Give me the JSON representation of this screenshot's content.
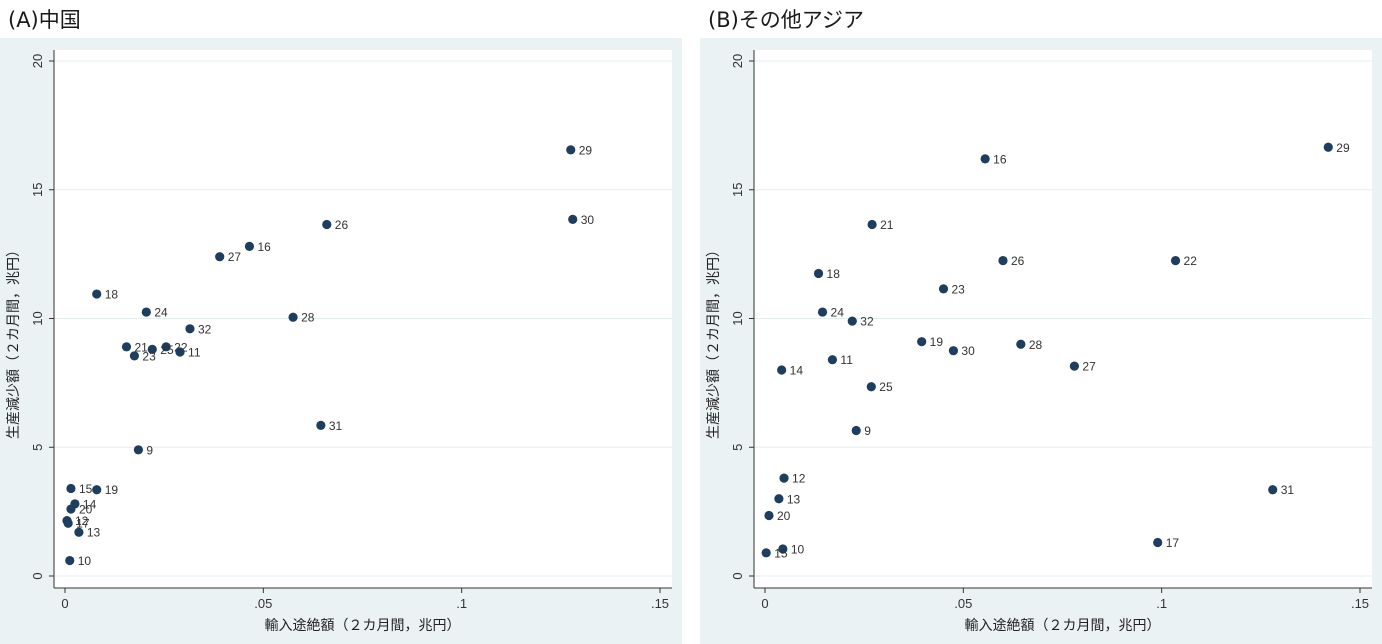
{
  "chart_data": [
    {
      "type": "scatter",
      "title": "(A)中国",
      "xlabel": "輸入途絶額（２カ月間，兆円）",
      "ylabel": "生産減少額（２カ月間，兆円）",
      "xlim": [
        0,
        0.15
      ],
      "ylim": [
        0,
        20
      ],
      "xticks": [
        0,
        0.05,
        0.1,
        0.15
      ],
      "xtick_labels": [
        "0",
        ".05",
        ".1",
        ".15"
      ],
      "yticks": [
        0,
        5,
        10,
        15,
        20
      ],
      "ytick_labels": [
        "0",
        "5",
        "10",
        "15",
        "20"
      ],
      "grid": true,
      "marker_color": "#1f3d5c",
      "points": [
        {
          "label": "29",
          "x": 0.1275,
          "y": 16.55
        },
        {
          "label": "30",
          "x": 0.128,
          "y": 13.85
        },
        {
          "label": "26",
          "x": 0.066,
          "y": 13.65
        },
        {
          "label": "16",
          "x": 0.0465,
          "y": 12.8
        },
        {
          "label": "27",
          "x": 0.039,
          "y": 12.4
        },
        {
          "label": "18",
          "x": 0.008,
          "y": 10.95
        },
        {
          "label": "24",
          "x": 0.0205,
          "y": 10.25
        },
        {
          "label": "28",
          "x": 0.0575,
          "y": 10.05
        },
        {
          "label": "32",
          "x": 0.0315,
          "y": 9.6
        },
        {
          "label": "21",
          "x": 0.0155,
          "y": 8.9
        },
        {
          "label": "22",
          "x": 0.0255,
          "y": 8.9
        },
        {
          "label": "25",
          "x": 0.022,
          "y": 8.8
        },
        {
          "label": "11",
          "x": 0.029,
          "y": 8.7
        },
        {
          "label": "23",
          "x": 0.0175,
          "y": 8.55
        },
        {
          "label": "31",
          "x": 0.0645,
          "y": 5.85
        },
        {
          "label": "9",
          "x": 0.0185,
          "y": 4.9
        },
        {
          "label": "15",
          "x": 0.0015,
          "y": 3.4
        },
        {
          "label": "19",
          "x": 0.008,
          "y": 3.35
        },
        {
          "label": "14",
          "x": 0.0025,
          "y": 2.8
        },
        {
          "label": "20",
          "x": 0.0015,
          "y": 2.6
        },
        {
          "label": "12",
          "x": 0.0005,
          "y": 2.15
        },
        {
          "label": "17",
          "x": 0.0008,
          "y": 2.05
        },
        {
          "label": "13",
          "x": 0.0035,
          "y": 1.7
        },
        {
          "label": "10",
          "x": 0.0012,
          "y": 0.6
        }
      ]
    },
    {
      "type": "scatter",
      "title": "(B)その他アジア",
      "xlabel": "輸入途絶額（２カ月間，兆円）",
      "ylabel": "生産減少額（２カ月間，兆円）",
      "xlim": [
        0,
        0.15
      ],
      "ylim": [
        0,
        20
      ],
      "xticks": [
        0,
        0.05,
        0.1,
        0.15
      ],
      "xtick_labels": [
        "0",
        ".05",
        ".1",
        ".15"
      ],
      "yticks": [
        0,
        5,
        10,
        15,
        20
      ],
      "ytick_labels": [
        "0",
        "5",
        "10",
        "15",
        "20"
      ],
      "grid": true,
      "marker_color": "#1f3d5c",
      "points": [
        {
          "label": "29",
          "x": 0.142,
          "y": 16.65
        },
        {
          "label": "16",
          "x": 0.0555,
          "y": 16.2
        },
        {
          "label": "21",
          "x": 0.027,
          "y": 13.65
        },
        {
          "label": "26",
          "x": 0.06,
          "y": 12.25
        },
        {
          "label": "22",
          "x": 0.1035,
          "y": 12.25
        },
        {
          "label": "18",
          "x": 0.0135,
          "y": 11.75
        },
        {
          "label": "23",
          "x": 0.045,
          "y": 11.15
        },
        {
          "label": "24",
          "x": 0.0145,
          "y": 10.25
        },
        {
          "label": "32",
          "x": 0.022,
          "y": 9.9
        },
        {
          "label": "19",
          "x": 0.0395,
          "y": 9.1
        },
        {
          "label": "28",
          "x": 0.0645,
          "y": 9.0
        },
        {
          "label": "30",
          "x": 0.0475,
          "y": 8.75
        },
        {
          "label": "11",
          "x": 0.017,
          "y": 8.4
        },
        {
          "label": "27",
          "x": 0.078,
          "y": 8.15
        },
        {
          "label": "14",
          "x": 0.0042,
          "y": 8.0
        },
        {
          "label": "25",
          "x": 0.0268,
          "y": 7.35
        },
        {
          "label": "9",
          "x": 0.023,
          "y": 5.65
        },
        {
          "label": "12",
          "x": 0.0048,
          "y": 3.8
        },
        {
          "label": "31",
          "x": 0.128,
          "y": 3.35
        },
        {
          "label": "13",
          "x": 0.0035,
          "y": 3.0
        },
        {
          "label": "20",
          "x": 0.001,
          "y": 2.35
        },
        {
          "label": "17",
          "x": 0.099,
          "y": 1.3
        },
        {
          "label": "10",
          "x": 0.0045,
          "y": 1.05
        },
        {
          "label": "15",
          "x": 0.0003,
          "y": 0.9
        }
      ]
    }
  ]
}
